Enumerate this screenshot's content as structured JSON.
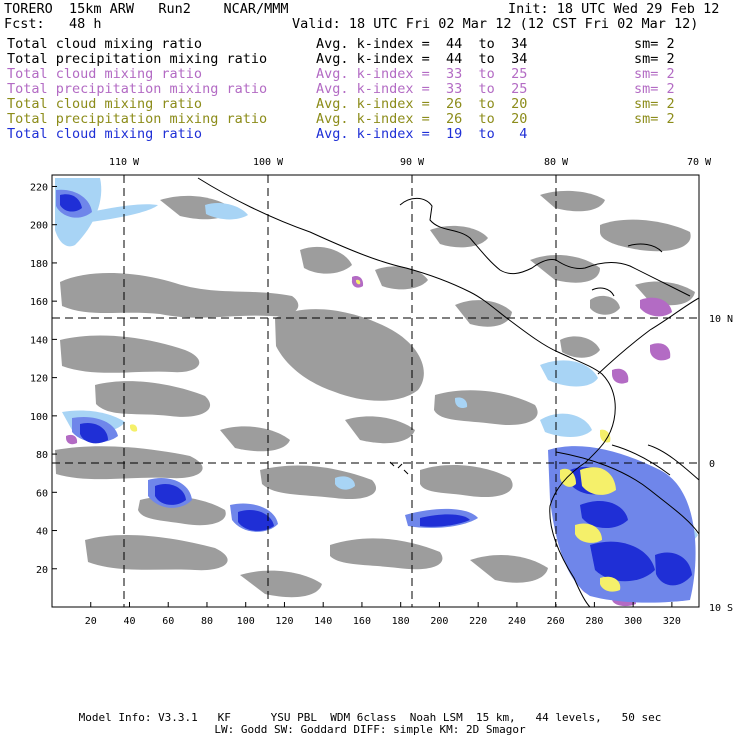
{
  "header": {
    "model": "TORERO  15km ARW   Run2    NCAR/MMM",
    "init": "Init: 18 UTC Wed 29 Feb 12",
    "fcst": "Fcst:   48 h",
    "valid": "Valid: 18 UTC Fri 02 Mar 12 (12 CST Fri 02 Mar 12)"
  },
  "legend": [
    {
      "field": "Total cloud mixing ratio",
      "kindex": "Avg. k-index =  44  to  34",
      "sm": "sm= 2",
      "color": "#000000"
    },
    {
      "field": "Total precipitation mixing ratio",
      "kindex": "Avg. k-index =  44  to  34",
      "sm": "sm= 2",
      "color": "#000000"
    },
    {
      "field": "Total cloud mixing ratio",
      "kindex": "Avg. k-index =  33  to  25",
      "sm": "sm= 2",
      "color": "#b36bc4"
    },
    {
      "field": "Total precipitation mixing ratio",
      "kindex": "Avg. k-index =  33  to  25",
      "sm": "sm= 2",
      "color": "#b36bc4"
    },
    {
      "field": "Total cloud mixing ratio",
      "kindex": "Avg. k-index =  26  to  20",
      "sm": "sm= 2",
      "color": "#8c8c1a"
    },
    {
      "field": "Total precipitation mixing ratio",
      "kindex": "Avg. k-index =  26  to  20",
      "sm": "sm= 2",
      "color": "#8c8c1a"
    },
    {
      "field": "Total cloud mixing ratio",
      "kindex": "Avg. k-index =  19  to   4",
      "sm": "",
      "color": "#1f2fd6"
    }
  ],
  "map": {
    "lon_top_labels": [
      "110 W",
      "100 W",
      "90 W",
      "80 W",
      "70 W"
    ],
    "lat_right_labels": [
      "10 N",
      "0",
      "10 S"
    ],
    "x_ticks": [
      "20",
      "40",
      "60",
      "80",
      "100",
      "120",
      "140",
      "160",
      "180",
      "200",
      "220",
      "240",
      "260",
      "280",
      "300",
      "320"
    ],
    "y_ticks": [
      "20",
      "40",
      "60",
      "80",
      "100",
      "120",
      "140",
      "160",
      "180",
      "200",
      "220"
    ],
    "x_range": [
      0,
      334
    ],
    "y_range": [
      0,
      226
    ],
    "colors": {
      "cloud_gray": "#9d9d9d",
      "light_blue": "#a8d4f5",
      "mid_blue": "#6f86ea",
      "deep_blue": "#1f2fd6",
      "purple": "#b36bc4",
      "yellow": "#f5f06a"
    }
  },
  "footer": {
    "line1": "Model Info: V3.3.1   KF      YSU PBL  WDM 6class  Noah LSM  15 km,   44 levels,   50 sec",
    "line2": "LW: Godd SW: Goddard DIFF: simple KM: 2D Smagor"
  }
}
